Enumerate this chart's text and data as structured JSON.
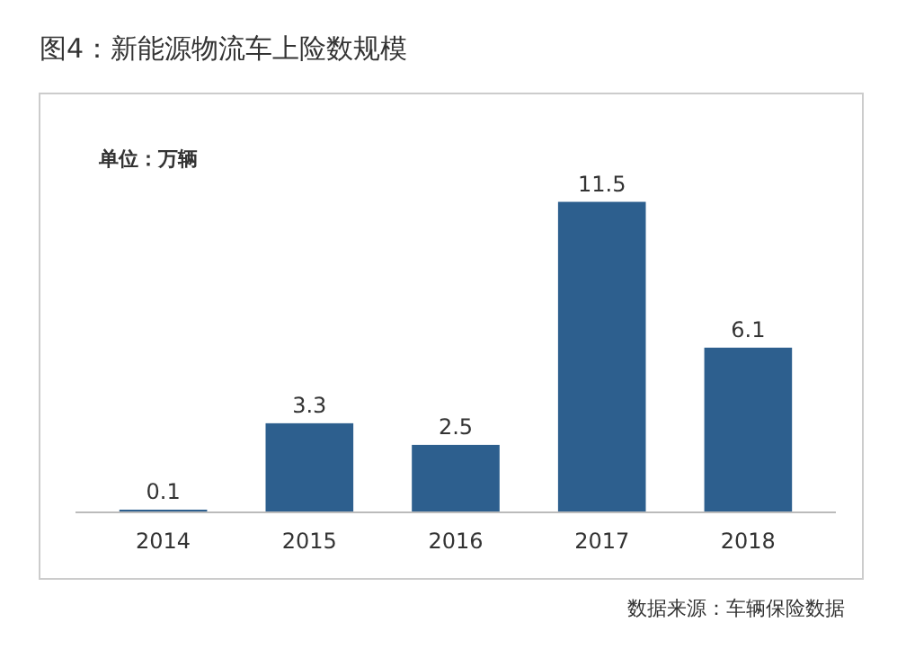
{
  "chart_data": {
    "type": "bar",
    "title": "图4：新能源物流车上险数规模",
    "subtitle": "单位：万辆",
    "categories": [
      "2014",
      "2015",
      "2016",
      "2017",
      "2018"
    ],
    "values": [
      0.1,
      3.3,
      2.5,
      11.5,
      6.1
    ],
    "color": "#2d5f8e",
    "data_labels": true,
    "annotations": [
      "数据来源：车辆保险数据"
    ]
  }
}
